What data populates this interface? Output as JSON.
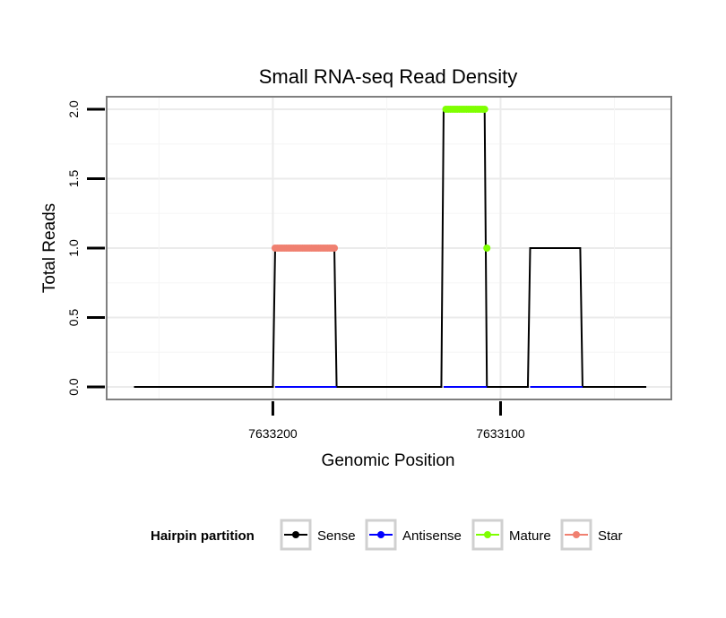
{
  "chart_data": {
    "type": "line",
    "title": "Small RNA-seq Read Density",
    "xlabel": "Genomic Position",
    "ylabel": "Total Reads",
    "x_reversed": true,
    "xlim": [
      7633273,
      7633025
    ],
    "ylim": [
      -0.09,
      2.09
    ],
    "x_ticks": [
      7633200,
      7633100
    ],
    "x_tick_labels": [
      "7633200",
      "7633100"
    ],
    "y_ticks": [
      0,
      0.5,
      1,
      1.5,
      2
    ],
    "y_tick_labels": [
      "0.0",
      "0.5",
      "1.0",
      "1.5",
      "2.0"
    ],
    "grid": true,
    "colors": {
      "sense": "#000000",
      "antisense": "#0000ff",
      "mature": "#7fff00",
      "star": "#f08070",
      "grid": "#ebebeb",
      "panel_border": "#7f7f7f"
    },
    "series": [
      {
        "name": "Sense",
        "key": "sense",
        "x": [
          7633261,
          7633200,
          7633199,
          7633173,
          7633172,
          7633126,
          7633125,
          7633107,
          7633106,
          7633088,
          7633087,
          7633065,
          7633064,
          7633036
        ],
        "y": [
          0,
          0,
          1,
          1,
          0,
          0,
          2,
          2,
          0,
          0,
          1,
          1,
          0,
          0
        ]
      },
      {
        "name": "Antisense",
        "key": "antisense",
        "x": [
          7633199,
          7633172,
          7633125,
          7633106,
          7633087,
          7633064
        ],
        "y": [
          0,
          0,
          0,
          0,
          0,
          0
        ],
        "segments": [
          [
            0,
            1
          ],
          [
            2,
            3
          ],
          [
            4,
            5
          ]
        ]
      },
      {
        "name": "Mature",
        "key": "mature",
        "x": [
          7633124,
          7633123,
          7633122,
          7633121,
          7633120,
          7633119,
          7633118,
          7633117,
          7633116,
          7633115,
          7633114,
          7633113,
          7633112,
          7633111,
          7633110,
          7633109,
          7633108,
          7633107,
          7633106
        ],
        "y": [
          2,
          2,
          2,
          2,
          2,
          2,
          2,
          2,
          2,
          2,
          2,
          2,
          2,
          2,
          2,
          2,
          2,
          2,
          1
        ]
      },
      {
        "name": "Star",
        "key": "star",
        "x": [
          7633199,
          7633198,
          7633197,
          7633196,
          7633195,
          7633194,
          7633193,
          7633192,
          7633191,
          7633190,
          7633189,
          7633188,
          7633187,
          7633186,
          7633185,
          7633184,
          7633183,
          7633182,
          7633181,
          7633180,
          7633179,
          7633178,
          7633177,
          7633176,
          7633175,
          7633174,
          7633173
        ],
        "y": [
          1,
          1,
          1,
          1,
          1,
          1,
          1,
          1,
          1,
          1,
          1,
          1,
          1,
          1,
          1,
          1,
          1,
          1,
          1,
          1,
          1,
          1,
          1,
          1,
          1,
          1,
          1
        ]
      }
    ],
    "legend": {
      "title": "Hairpin partition",
      "position": "bottom",
      "entries": [
        {
          "label": "Sense",
          "key": "sense"
        },
        {
          "label": "Antisense",
          "key": "antisense"
        },
        {
          "label": "Mature",
          "key": "mature"
        },
        {
          "label": "Star",
          "key": "star"
        }
      ]
    }
  }
}
